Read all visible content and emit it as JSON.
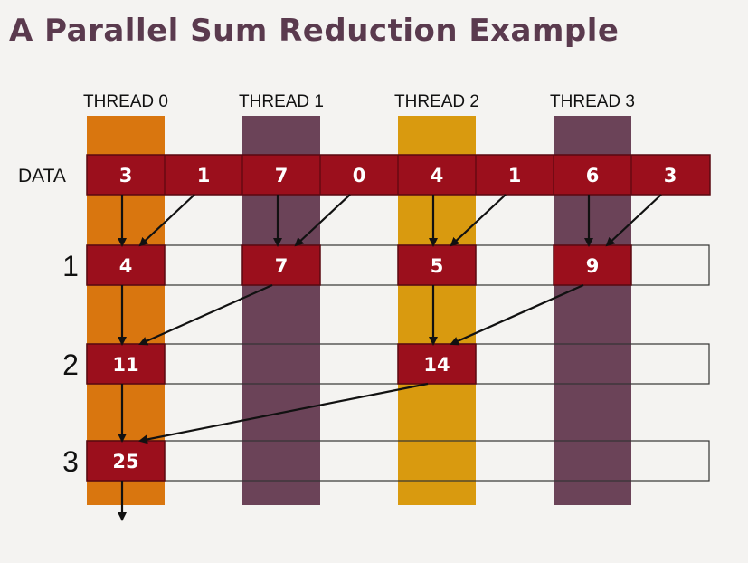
{
  "title": "A Parallel Sum Reduction Example",
  "threads": [
    {
      "label": "THREAD 0",
      "color": "#d9760f"
    },
    {
      "label": "THREAD 1",
      "color": "#6b4358"
    },
    {
      "label": "THREAD 2",
      "color": "#d99a0f"
    },
    {
      "label": "THREAD 3",
      "color": "#6b4358"
    }
  ],
  "data_label": "DATA",
  "data_values": [
    "3",
    "1",
    "7",
    "0",
    "4",
    "1",
    "6",
    "3"
  ],
  "steps": [
    {
      "label": "1",
      "values": [
        "4",
        "7",
        "5",
        "9"
      ],
      "slots": [
        0,
        2,
        4,
        6
      ]
    },
    {
      "label": "2",
      "values": [
        "11",
        "14"
      ],
      "slots": [
        0,
        4
      ]
    },
    {
      "label": "3",
      "values": [
        "25"
      ],
      "slots": [
        0
      ]
    }
  ],
  "colors": {
    "cell": "#9b0f1c",
    "cell_border": "#5a0810",
    "arrow": "#111111",
    "row_border": "#333333"
  }
}
